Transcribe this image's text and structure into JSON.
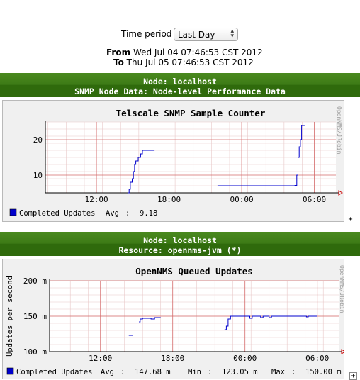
{
  "period": {
    "label": "Time period",
    "selected": "Last Day"
  },
  "range": {
    "from_label": "From",
    "from_value": "Wed Jul 04 07:46:53 CST 2012",
    "to_label": "To",
    "to_value": "Thu Jul 05 07:46:53 CST 2012"
  },
  "sections": [
    {
      "node": "Node: localhost",
      "resource": "SNMP Node Data: Node-level Performance Data"
    },
    {
      "node": "Node: localhost",
      "resource": "Resource: opennms-jvm (*)"
    }
  ],
  "expand_symbol": "+",
  "chart_data": [
    {
      "type": "line",
      "title": "Telscale SNMP Sample Counter",
      "ylabel": "",
      "watermark": "OpenNMS/JRobin",
      "ylim": [
        5,
        25
      ],
      "yticks": [
        "10",
        "20"
      ],
      "xticks": [
        "12:00",
        "18:00",
        "00:00",
        "06:00"
      ],
      "series": [
        {
          "name": "Completed Updates",
          "color": "#0000cc",
          "segments": [
            [
              [
                14.6,
                5
              ],
              [
                14.7,
                5
              ],
              [
                14.7,
                6
              ],
              [
                14.8,
                6
              ],
              [
                14.8,
                8
              ],
              [
                14.95,
                8
              ],
              [
                14.95,
                9
              ],
              [
                15.05,
                9
              ],
              [
                15.05,
                11
              ],
              [
                15.15,
                11
              ],
              [
                15.15,
                13
              ],
              [
                15.25,
                13
              ],
              [
                15.25,
                14
              ],
              [
                15.45,
                14
              ],
              [
                15.45,
                15
              ],
              [
                15.65,
                15
              ],
              [
                15.65,
                16
              ],
              [
                15.8,
                16
              ],
              [
                15.8,
                17
              ],
              [
                16.8,
                17
              ]
            ],
            [
              [
                22.0,
                7
              ],
              [
                28.4,
                7
              ],
              [
                28.4,
                7.1
              ],
              [
                28.55,
                7.1
              ],
              [
                28.55,
                10
              ],
              [
                28.65,
                10
              ],
              [
                28.65,
                15
              ],
              [
                28.75,
                15
              ],
              [
                28.75,
                18
              ],
              [
                28.85,
                18
              ],
              [
                28.85,
                20
              ],
              [
                28.95,
                20
              ],
              [
                28.95,
                24
              ],
              [
                29.2,
                24
              ]
            ]
          ]
        }
      ],
      "legend": {
        "label": "Completed Updates",
        "stats": [
          {
            "name": "Avg",
            "value": "9.18"
          }
        ]
      }
    },
    {
      "type": "line",
      "title": "OpenNMS Queued Updates",
      "ylabel": "Updates per second",
      "watermark": "OpenNMS/JRobin",
      "ylim": [
        100,
        200
      ],
      "yticks": [
        "100 m",
        "150 m",
        "200 m"
      ],
      "xticks": [
        "12:00",
        "18:00",
        "00:00",
        "06:00"
      ],
      "series": [
        {
          "name": "Completed Updates",
          "color": "#0000cc",
          "segments": [
            [
              [
                14.35,
                123
              ],
              [
                14.7,
                123
              ]
            ],
            [
              [
                15.2,
                142
              ],
              [
                15.3,
                142
              ],
              [
                15.3,
                146
              ],
              [
                15.5,
                146
              ],
              [
                15.5,
                147
              ],
              [
                16.2,
                147
              ],
              [
                16.2,
                146
              ],
              [
                16.5,
                146
              ],
              [
                16.5,
                148
              ],
              [
                17.0,
                148
              ]
            ],
            [
              [
                22.3,
                131
              ],
              [
                22.45,
                131
              ],
              [
                22.45,
                136
              ],
              [
                22.6,
                136
              ],
              [
                22.6,
                146
              ],
              [
                22.8,
                146
              ],
              [
                22.8,
                150
              ],
              [
                24.4,
                150
              ],
              [
                24.4,
                147
              ],
              [
                24.6,
                147
              ],
              [
                24.6,
                150
              ],
              [
                25.3,
                150
              ],
              [
                25.3,
                148
              ],
              [
                25.5,
                148
              ],
              [
                25.5,
                150
              ],
              [
                26.0,
                150
              ],
              [
                26.0,
                148
              ],
              [
                26.2,
                148
              ],
              [
                26.2,
                150
              ],
              [
                29.1,
                150
              ],
              [
                29.1,
                149
              ],
              [
                29.25,
                149
              ],
              [
                29.25,
                150
              ],
              [
                30.0,
                150
              ]
            ]
          ]
        }
      ],
      "legend": {
        "label": "Completed Updates",
        "stats": [
          {
            "name": "Avg",
            "value": "147.68 m"
          },
          {
            "name": "Min",
            "value": "123.05 m"
          },
          {
            "name": "Max",
            "value": "150.00 m"
          }
        ]
      }
    }
  ]
}
